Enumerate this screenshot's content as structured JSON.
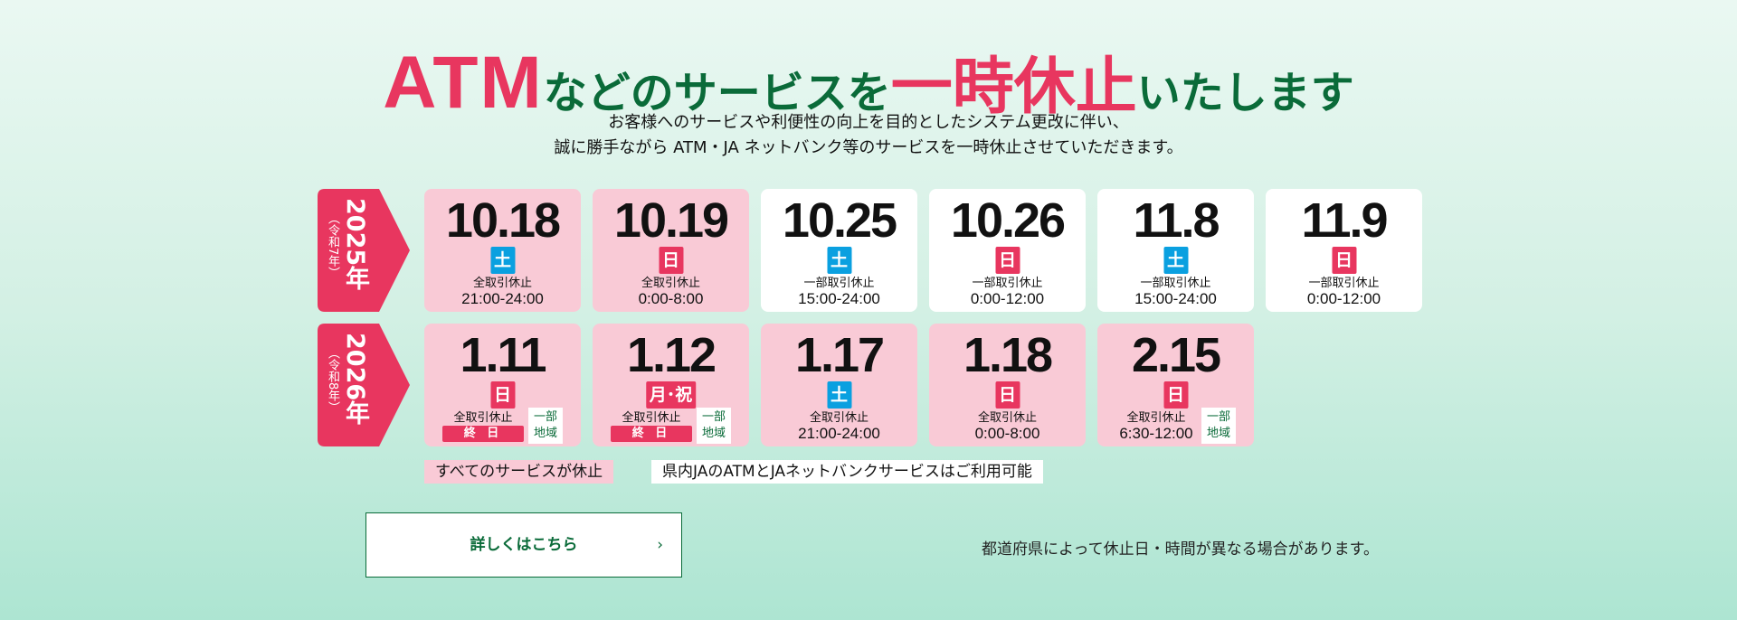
{
  "title": {
    "part1": "ATM",
    "part2": "などのサービスを",
    "part3": "一時休止",
    "part4": "いたします"
  },
  "subtitle": {
    "line1": "お客様へのサービスや利便性の向上を目的としたシステム更改に伴い、",
    "line2": "誠に勝手ながら ATM・JA ネットバンク等のサービスを一時休止させていただきます。"
  },
  "colors": {
    "pink": "#e8365f",
    "green": "#0a6b39",
    "saturday": "#0aa0e0",
    "card_pink": "#f9cad6"
  },
  "rows": [
    {
      "year": "2025年",
      "era": "（令和7年）",
      "cards": [
        {
          "date": "10.18",
          "day": "土",
          "kind": "全取引休止",
          "time": "21:00-24:00",
          "type": "full"
        },
        {
          "date": "10.19",
          "day": "日",
          "kind": "全取引休止",
          "time": "0:00-8:00",
          "type": "full"
        },
        {
          "date": "10.25",
          "day": "土",
          "kind": "一部取引休止",
          "time": "15:00-24:00",
          "type": "partial"
        },
        {
          "date": "10.26",
          "day": "日",
          "kind": "一部取引休止",
          "time": "0:00-12:00",
          "type": "partial"
        },
        {
          "date": "11.8",
          "day": "土",
          "kind": "一部取引休止",
          "time": "15:00-24:00",
          "type": "partial"
        },
        {
          "date": "11.9",
          "day": "日",
          "kind": "一部取引休止",
          "time": "0:00-12:00",
          "type": "partial"
        }
      ]
    },
    {
      "year": "2026年",
      "era": "（令和8年）",
      "cards": [
        {
          "date": "1.11",
          "day": "日",
          "kind": "全取引休止",
          "allday": "終 日",
          "region": "一部\n地域",
          "type": "full"
        },
        {
          "date": "1.12",
          "day": "月･祝",
          "kind": "全取引休止",
          "allday": "終 日",
          "region": "一部\n地域",
          "type": "full"
        },
        {
          "date": "1.17",
          "day": "土",
          "kind": "全取引休止",
          "time": "21:00-24:00",
          "type": "full"
        },
        {
          "date": "1.18",
          "day": "日",
          "kind": "全取引休止",
          "time": "0:00-8:00",
          "type": "full"
        },
        {
          "date": "2.15",
          "day": "日",
          "kind": "全取引休止",
          "time": "6:30-12:00",
          "region": "一部\n地域",
          "type": "full"
        }
      ]
    }
  ],
  "legend": {
    "full": "すべてのサービスが休止",
    "partial": "県内JAのATMとJAネットバンクサービスはご利用可能"
  },
  "details_button": {
    "label": "詳しくはこちら",
    "icon": "chevron-right-icon"
  },
  "note": "都道府県によって休止日・時間が異なる場合があります。"
}
